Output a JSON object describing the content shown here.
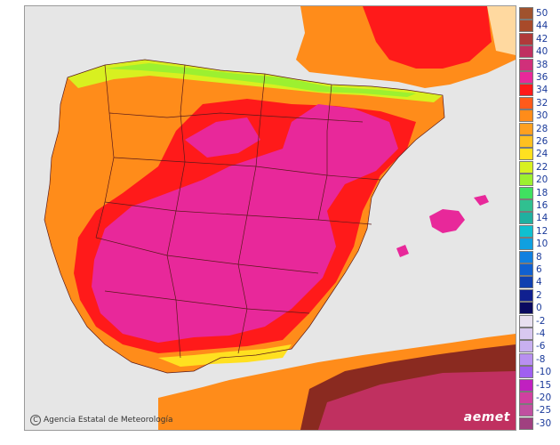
{
  "credit": "Agencia Estatal de Meteorología",
  "logo": "aemet",
  "colors": {
    "sea": "#e6e6e6",
    "border_line": "#5a1a1a",
    "magenta_hot": "#e0208c",
    "red": "#e8181a",
    "orange": "#ff8c1a",
    "light_orange": "#ffb02e",
    "yellow": "#ffe32e",
    "green": "#9be832",
    "brown": "#a0522d",
    "dark_brown": "#8a2a00"
  },
  "legend": [
    {
      "label": "50",
      "color": "#a0522d"
    },
    {
      "label": "44",
      "color": "#a84a2a"
    },
    {
      "label": "42",
      "color": "#b03a3a"
    },
    {
      "label": "40",
      "color": "#c03060"
    },
    {
      "label": "38",
      "color": "#d0307a"
    },
    {
      "label": "36",
      "color": "#e8289a"
    },
    {
      "label": "34",
      "color": "#ff1a1a"
    },
    {
      "label": "32",
      "color": "#ff5a1a"
    },
    {
      "label": "30",
      "color": "#ff8c1a"
    },
    {
      "label": "28",
      "color": "#ffa020"
    },
    {
      "label": "26",
      "color": "#ffc020"
    },
    {
      "label": "24",
      "color": "#ffe020"
    },
    {
      "label": "22",
      "color": "#d8f020"
    },
    {
      "label": "20",
      "color": "#9cf030"
    },
    {
      "label": "18",
      "color": "#40e060"
    },
    {
      "label": "16",
      "color": "#30c090"
    },
    {
      "label": "14",
      "color": "#20b0a0"
    },
    {
      "label": "12",
      "color": "#10c0d0"
    },
    {
      "label": "10",
      "color": "#10a0e0"
    },
    {
      "label": "8",
      "color": "#1080e0"
    },
    {
      "label": "6",
      "color": "#1060d0"
    },
    {
      "label": "4",
      "color": "#1040b0"
    },
    {
      "label": "2",
      "color": "#102090"
    },
    {
      "label": "0",
      "color": "#0a0a60"
    },
    {
      "label": "-2",
      "color": "#e8e0f0"
    },
    {
      "label": "-4",
      "color": "#d8c8f0"
    },
    {
      "label": "-6",
      "color": "#c8b0f0"
    },
    {
      "label": "-8",
      "color": "#b890f0"
    },
    {
      "label": "-10",
      "color": "#a060f0"
    },
    {
      "label": "-15",
      "color": "#c020c0"
    },
    {
      "label": "-20",
      "color": "#d040a0"
    },
    {
      "label": "-25",
      "color": "#c050a0"
    },
    {
      "label": "-30",
      "color": "#a04080"
    }
  ]
}
